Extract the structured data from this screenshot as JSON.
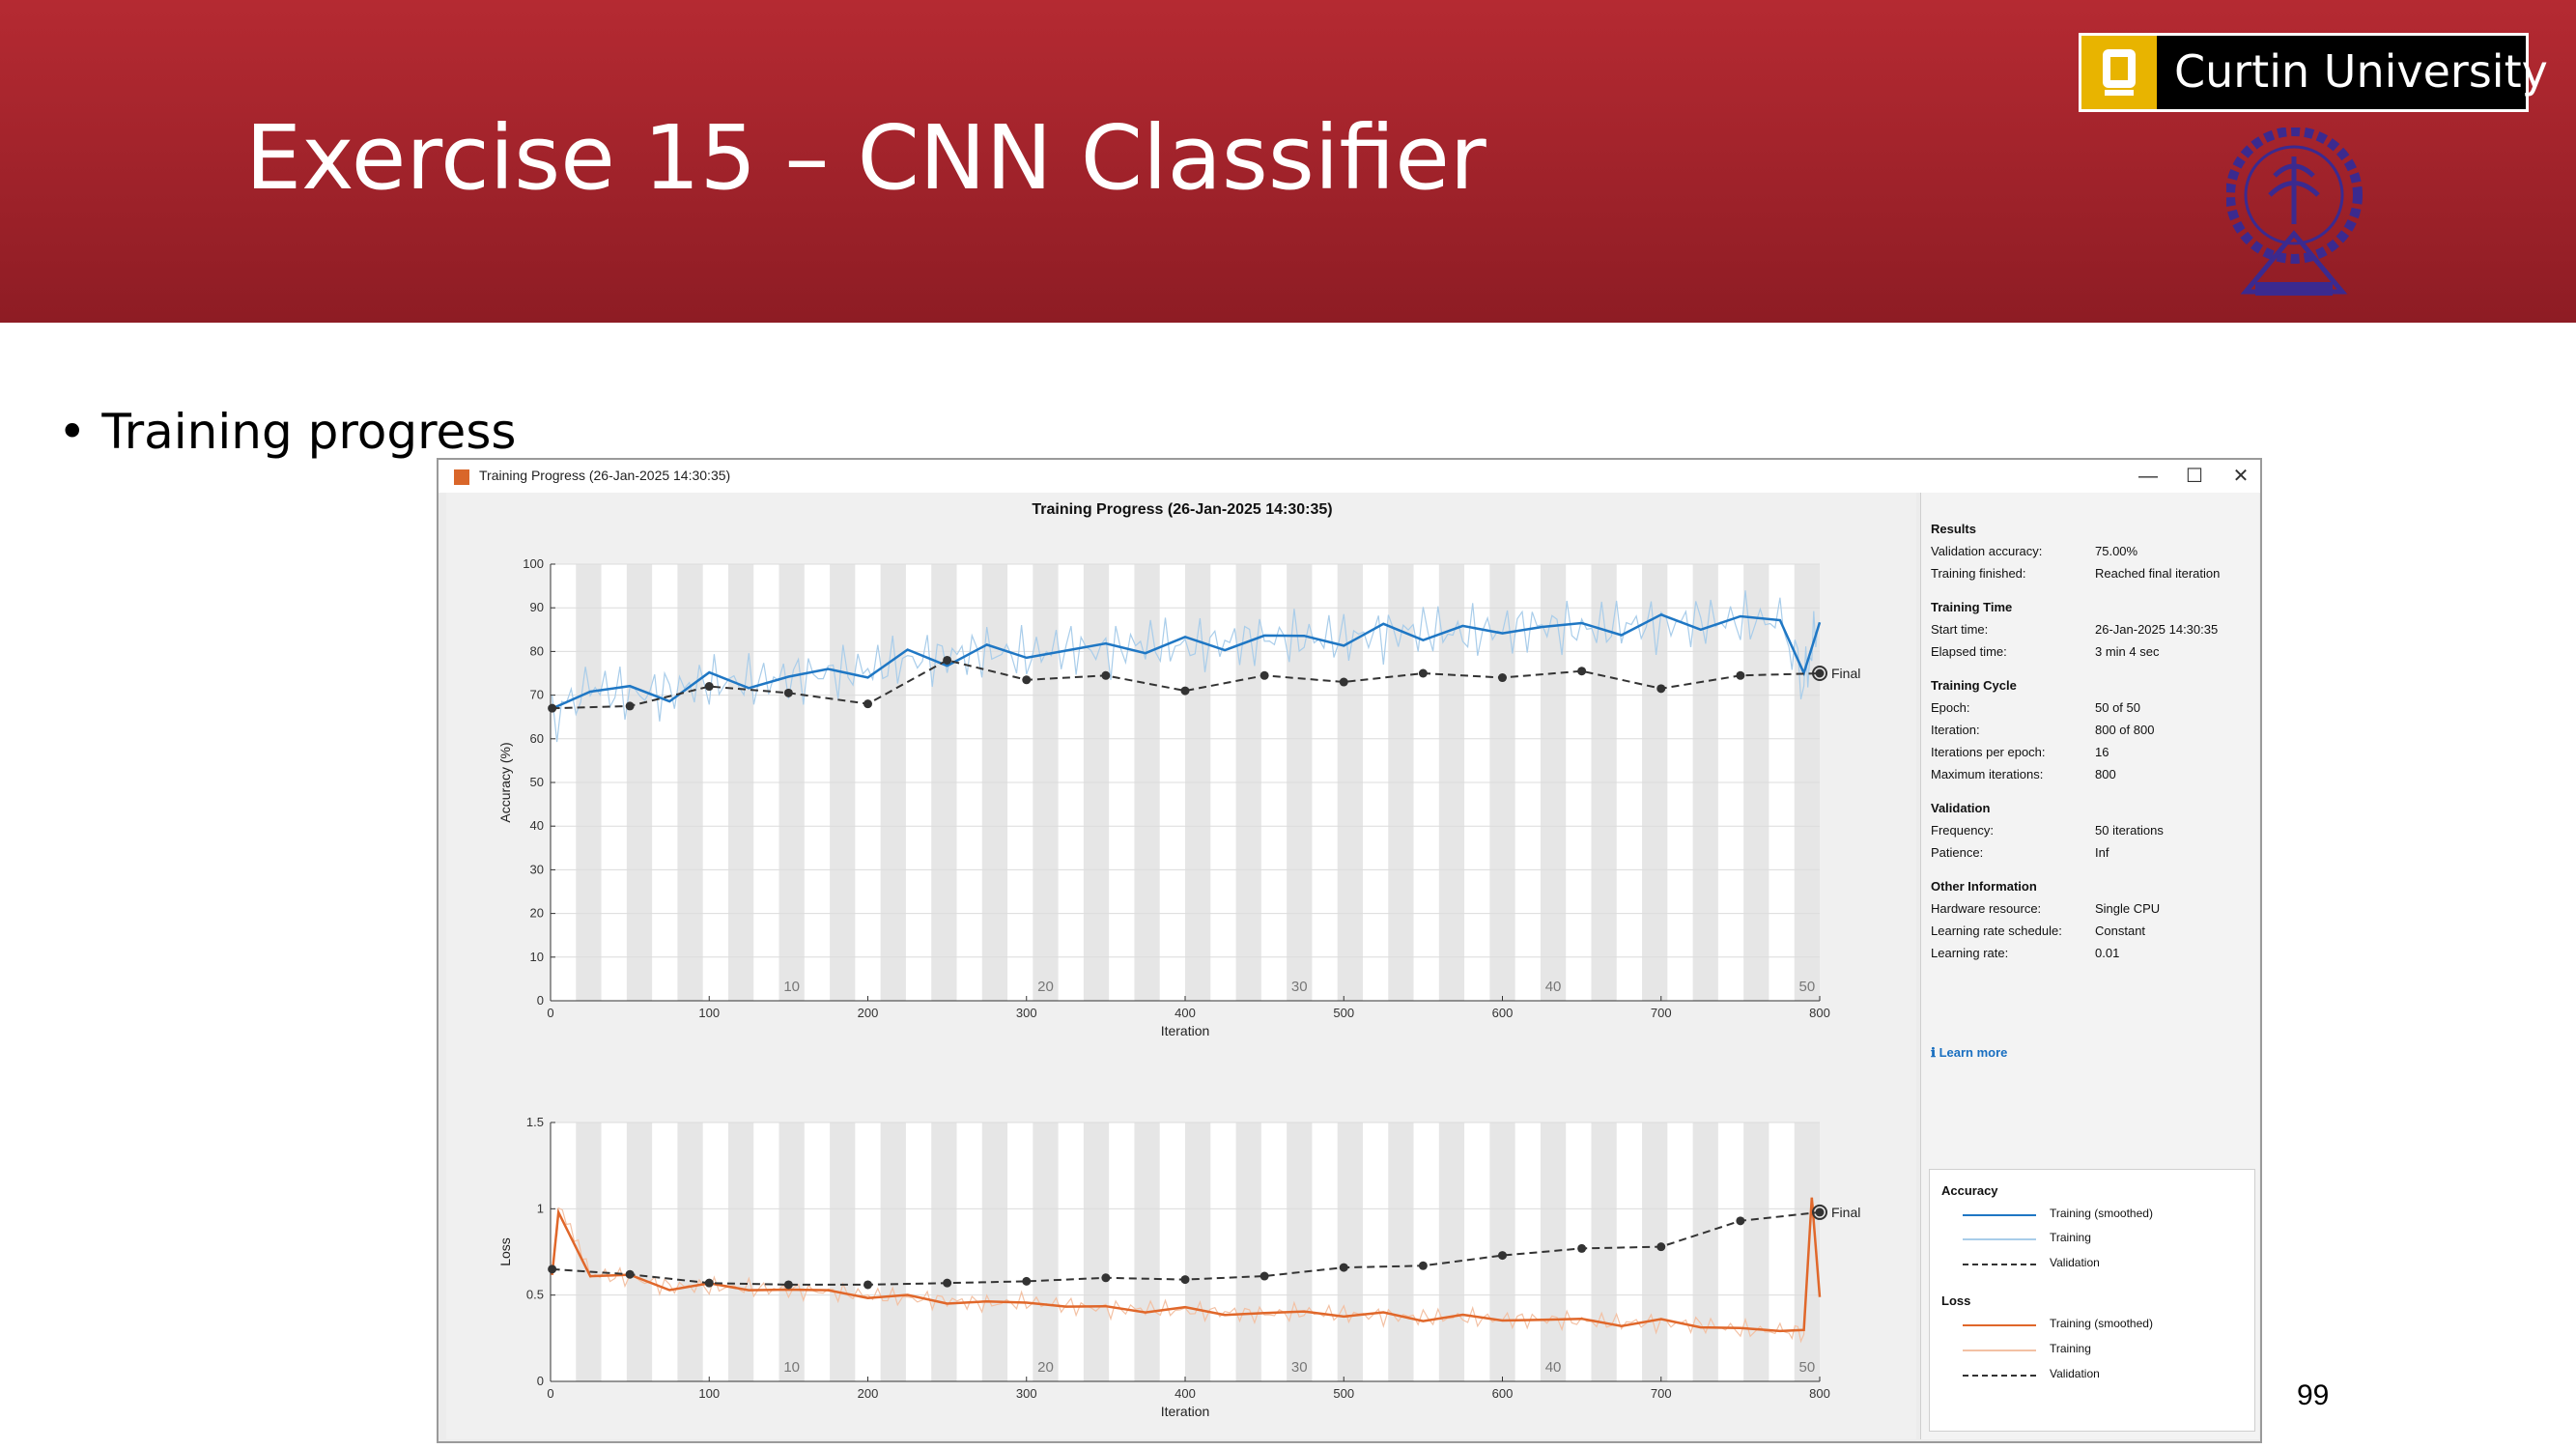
{
  "slide": {
    "title": "Exercise 15 – CNN Classifier",
    "logo_text": "Curtin University",
    "bullet": "Training progress",
    "page_number": "99",
    "brand_color": "#b52a32"
  },
  "window": {
    "title": "Training Progress (26-Jan-2025 14:30:35)",
    "controls": {
      "minimize": "—",
      "maximize": "☐",
      "close": "✕"
    },
    "plot_title": "Training Progress (26-Jan-2025 14:30:35)"
  },
  "results_panel": {
    "sections": [
      {
        "title": "Results",
        "rows": [
          {
            "label": "Validation accuracy:",
            "value": "75.00%"
          },
          {
            "label": "Training finished:",
            "value": "Reached final iteration"
          }
        ]
      },
      {
        "title": "Training Time",
        "rows": [
          {
            "label": "Start time:",
            "value": "26-Jan-2025 14:30:35"
          },
          {
            "label": "Elapsed time:",
            "value": "3 min 4 sec"
          }
        ]
      },
      {
        "title": "Training Cycle",
        "rows": [
          {
            "label": "Epoch:",
            "value": "50 of 50"
          },
          {
            "label": "Iteration:",
            "value": "800 of 800"
          },
          {
            "label": "Iterations per epoch:",
            "value": "16"
          },
          {
            "label": "Maximum iterations:",
            "value": "800"
          }
        ]
      },
      {
        "title": "Validation",
        "rows": [
          {
            "label": "Frequency:",
            "value": "50 iterations"
          },
          {
            "label": "Patience:",
            "value": "Inf"
          }
        ]
      },
      {
        "title": "Other Information",
        "rows": [
          {
            "label": "Hardware resource:",
            "value": "Single CPU"
          },
          {
            "label": "Learning rate schedule:",
            "value": "Constant"
          },
          {
            "label": "Learning rate:",
            "value": "0.01"
          }
        ]
      }
    ],
    "learn_more": "Learn more"
  },
  "legend": {
    "accuracy_title": "Accuracy",
    "accuracy_items": [
      "Training (smoothed)",
      "Training",
      "Validation"
    ],
    "loss_title": "Loss",
    "loss_items": [
      "Training (smoothed)",
      "Training",
      "Validation"
    ],
    "colors": {
      "acc_smoothed": "#1f77c4",
      "acc_training": "#a9cdea",
      "validation": "#333333",
      "loss_smoothed": "#e0672a",
      "loss_training": "#f3c1a4"
    }
  },
  "chart_data": [
    {
      "type": "line",
      "ylabel": "Accuracy (%)",
      "xlabel": "Iteration",
      "xlim": [
        0,
        800
      ],
      "ylim": [
        0,
        100
      ],
      "xticks": [
        0,
        100,
        200,
        300,
        400,
        500,
        600,
        700,
        800
      ],
      "yticks": [
        0,
        10,
        20,
        30,
        40,
        50,
        60,
        70,
        80,
        90,
        100
      ],
      "epoch_labels": [
        "10",
        "20",
        "30",
        "40",
        "50"
      ],
      "final_label": "Final",
      "series": [
        {
          "name": "Training (smoothed)",
          "x": [
            1,
            25,
            50,
            75,
            100,
            125,
            150,
            175,
            200,
            225,
            250,
            275,
            300,
            325,
            350,
            375,
            400,
            425,
            450,
            475,
            500,
            525,
            550,
            575,
            600,
            625,
            650,
            675,
            700,
            725,
            750,
            775,
            790,
            800
          ],
          "values": [
            65,
            72,
            70,
            71,
            73,
            73,
            74,
            75,
            76,
            78,
            79,
            80,
            79,
            81,
            80,
            82,
            81,
            82,
            83,
            83,
            83,
            84,
            85,
            84,
            85,
            86,
            85,
            86,
            86,
            87,
            87,
            87,
            73,
            88
          ]
        },
        {
          "name": "Validation",
          "x": [
            1,
            50,
            100,
            150,
            200,
            250,
            300,
            350,
            400,
            450,
            500,
            550,
            600,
            650,
            700,
            750,
            800
          ],
          "values": [
            67,
            67.5,
            72,
            70.5,
            68,
            78,
            73.5,
            74.5,
            71,
            74.5,
            73,
            75,
            74,
            75.5,
            71.5,
            74.5,
            75
          ]
        }
      ]
    },
    {
      "type": "line",
      "ylabel": "Loss",
      "xlabel": "Iteration",
      "xlim": [
        0,
        800
      ],
      "ylim": [
        0,
        1.5
      ],
      "xticks": [
        0,
        100,
        200,
        300,
        400,
        500,
        600,
        700,
        800
      ],
      "yticks": [
        0,
        0.5,
        1,
        1.5
      ],
      "ytick_labels": [
        "0",
        "0.5",
        "1",
        "1.5"
      ],
      "epoch_labels": [
        "10",
        "20",
        "30",
        "40",
        "50"
      ],
      "final_label": "Final",
      "series": [
        {
          "name": "Training (smoothed)",
          "x": [
            1,
            5,
            25,
            50,
            75,
            100,
            125,
            150,
            175,
            200,
            225,
            250,
            275,
            300,
            325,
            350,
            375,
            400,
            425,
            450,
            475,
            500,
            525,
            550,
            575,
            600,
            625,
            650,
            675,
            700,
            725,
            750,
            775,
            790,
            795,
            800
          ],
          "values": [
            0.6,
            1.0,
            0.62,
            0.6,
            0.55,
            0.55,
            0.54,
            0.53,
            0.52,
            0.5,
            0.48,
            0.47,
            0.45,
            0.46,
            0.44,
            0.42,
            0.42,
            0.41,
            0.4,
            0.39,
            0.4,
            0.39,
            0.38,
            0.37,
            0.37,
            0.36,
            0.36,
            0.35,
            0.34,
            0.34,
            0.33,
            0.3,
            0.29,
            0.28,
            1.08,
            0.5
          ]
        },
        {
          "name": "Validation",
          "x": [
            1,
            50,
            100,
            150,
            200,
            250,
            300,
            350,
            400,
            450,
            500,
            550,
            600,
            650,
            700,
            750,
            800
          ],
          "values": [
            0.65,
            0.62,
            0.57,
            0.56,
            0.56,
            0.57,
            0.58,
            0.6,
            0.59,
            0.61,
            0.66,
            0.67,
            0.73,
            0.77,
            0.78,
            0.93,
            0.98
          ]
        }
      ]
    }
  ]
}
